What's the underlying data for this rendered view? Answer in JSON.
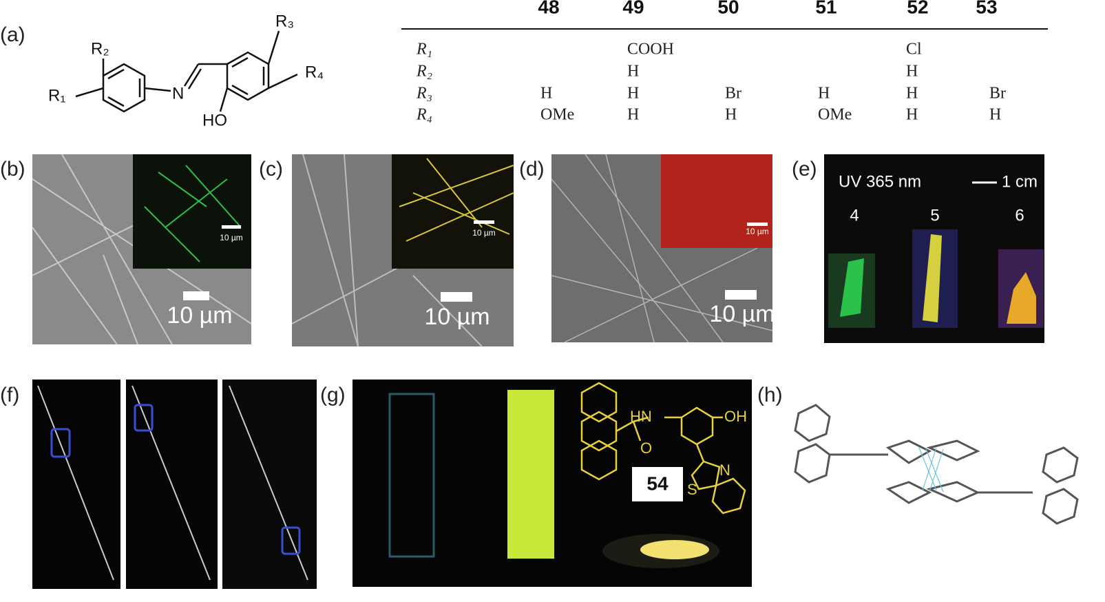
{
  "panel_labels": [
    "(a)",
    "(b)",
    "(c)",
    "(d)",
    "(e)",
    "(f)",
    "(g)",
    "(h)"
  ],
  "structure": {
    "r1": "R₁",
    "r2": "R₂",
    "r3": "R₃",
    "r4": "R₄",
    "n": "N",
    "ho": "HO"
  },
  "table": {
    "columns": [
      "48",
      "49",
      "50",
      "51",
      "52",
      "53"
    ],
    "rows": [
      {
        "label": "R₁",
        "cells": [
          null,
          "COOH",
          null,
          null,
          "Cl",
          null
        ]
      },
      {
        "label": "R₂",
        "cells": [
          null,
          "H",
          null,
          null,
          "H",
          null
        ]
      },
      {
        "label": "R₃",
        "cells": [
          "H",
          "H",
          "Br",
          "H",
          "H",
          "Br"
        ]
      },
      {
        "label": "R₄",
        "cells": [
          "OMe",
          "H",
          "H",
          "OMe",
          "H",
          "H"
        ]
      }
    ]
  },
  "panel_b": {
    "scale_bar": "10 µm",
    "inset_scale_bar": "10 µm"
  },
  "panel_c": {
    "scale_bar": "10 µm",
    "inset_scale_bar": "10 µm"
  },
  "panel_d": {
    "scale_bar": "10 µm",
    "inset_scale_bar": "10 µm"
  },
  "panel_e": {
    "caption": "UV 365 nm",
    "scale_bar": "1 cm",
    "samples": [
      "4",
      "5",
      "6"
    ]
  },
  "panel_g": {
    "compound": "54",
    "atoms": [
      "HN",
      "OH",
      "O",
      "N",
      "S"
    ]
  }
}
